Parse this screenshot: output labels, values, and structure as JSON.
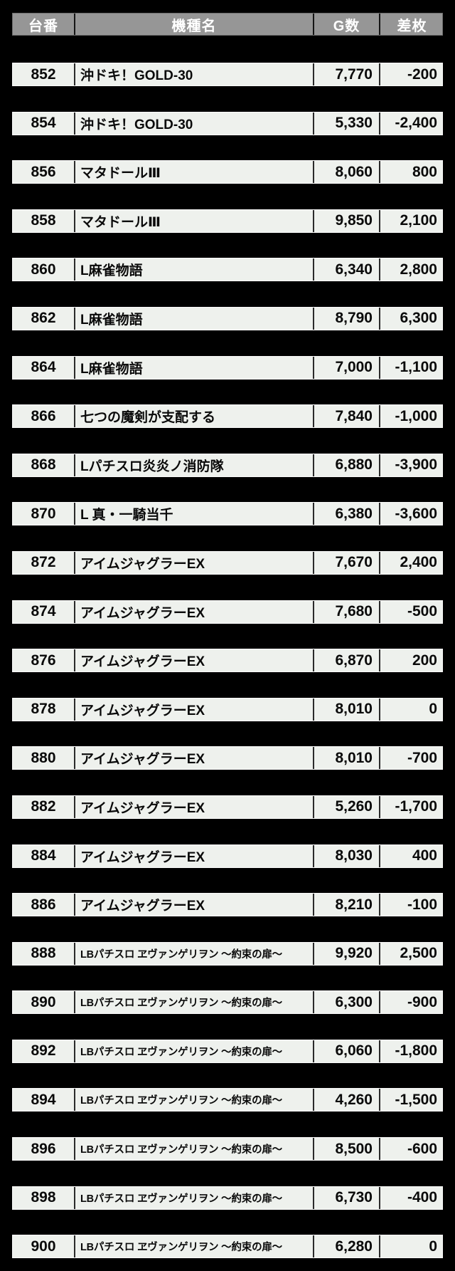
{
  "colors": {
    "page_bg": "#000000",
    "header_bg": "#969696",
    "header_text": "#ffffff",
    "cell_bg": "#eef1ed",
    "cell_text": "#0a0a0a",
    "divider": "#2a2a2a"
  },
  "table": {
    "columns": [
      {
        "key": "dai",
        "label": "台番"
      },
      {
        "key": "name",
        "label": "機種名"
      },
      {
        "key": "games",
        "label": "G数"
      },
      {
        "key": "diff",
        "label": "差枚"
      }
    ],
    "rows": [
      {
        "dai": "852",
        "name": "沖ドキ！GOLD-30",
        "games": "7,770",
        "diff": "-200"
      },
      {
        "dai": "854",
        "name": "沖ドキ！GOLD-30",
        "games": "5,330",
        "diff": "-2,400"
      },
      {
        "dai": "856",
        "name": "マタドールⅢ",
        "games": "8,060",
        "diff": "800"
      },
      {
        "dai": "858",
        "name": "マタドールⅢ",
        "games": "9,850",
        "diff": "2,100"
      },
      {
        "dai": "860",
        "name": "L麻雀物語",
        "games": "6,340",
        "diff": "2,800"
      },
      {
        "dai": "862",
        "name": "L麻雀物語",
        "games": "8,790",
        "diff": "6,300"
      },
      {
        "dai": "864",
        "name": "L麻雀物語",
        "games": "7,000",
        "diff": "-1,100"
      },
      {
        "dai": "866",
        "name": "七つの魔剣が支配する",
        "games": "7,840",
        "diff": "-1,000"
      },
      {
        "dai": "868",
        "name": "Lパチスロ炎炎ノ消防隊",
        "games": "6,880",
        "diff": "-3,900"
      },
      {
        "dai": "870",
        "name": "L 真・一騎当千",
        "games": "6,380",
        "diff": "-3,600"
      },
      {
        "dai": "872",
        "name": "アイムジャグラーEX",
        "games": "7,670",
        "diff": "2,400"
      },
      {
        "dai": "874",
        "name": "アイムジャグラーEX",
        "games": "7,680",
        "diff": "-500"
      },
      {
        "dai": "876",
        "name": "アイムジャグラーEX",
        "games": "6,870",
        "diff": "200"
      },
      {
        "dai": "878",
        "name": "アイムジャグラーEX",
        "games": "8,010",
        "diff": "0"
      },
      {
        "dai": "880",
        "name": "アイムジャグラーEX",
        "games": "8,010",
        "diff": "-700"
      },
      {
        "dai": "882",
        "name": "アイムジャグラーEX",
        "games": "5,260",
        "diff": "-1,700"
      },
      {
        "dai": "884",
        "name": "アイムジャグラーEX",
        "games": "8,030",
        "diff": "400"
      },
      {
        "dai": "886",
        "name": "アイムジャグラーEX",
        "games": "8,210",
        "diff": "-100"
      },
      {
        "dai": "888",
        "name": "LBパチスロ ヱヴァンゲリヲン ～約束の扉～",
        "games": "9,920",
        "diff": "2,500"
      },
      {
        "dai": "890",
        "name": "LBパチスロ ヱヴァンゲリヲン ～約束の扉～",
        "games": "6,300",
        "diff": "-900"
      },
      {
        "dai": "892",
        "name": "LBパチスロ ヱヴァンゲリヲン ～約束の扉～",
        "games": "6,060",
        "diff": "-1,800"
      },
      {
        "dai": "894",
        "name": "LBパチスロ ヱヴァンゲリヲン ～約束の扉～",
        "games": "4,260",
        "diff": "-1,500"
      },
      {
        "dai": "896",
        "name": "LBパチスロ ヱヴァンゲリヲン ～約束の扉～",
        "games": "8,500",
        "diff": "-600"
      },
      {
        "dai": "898",
        "name": "LBパチスロ ヱヴァンゲリヲン ～約束の扉～",
        "games": "6,730",
        "diff": "-400"
      },
      {
        "dai": "900",
        "name": "LBパチスロ ヱヴァンゲリヲン ～約束の扉～",
        "games": "6,280",
        "diff": "0"
      }
    ]
  }
}
